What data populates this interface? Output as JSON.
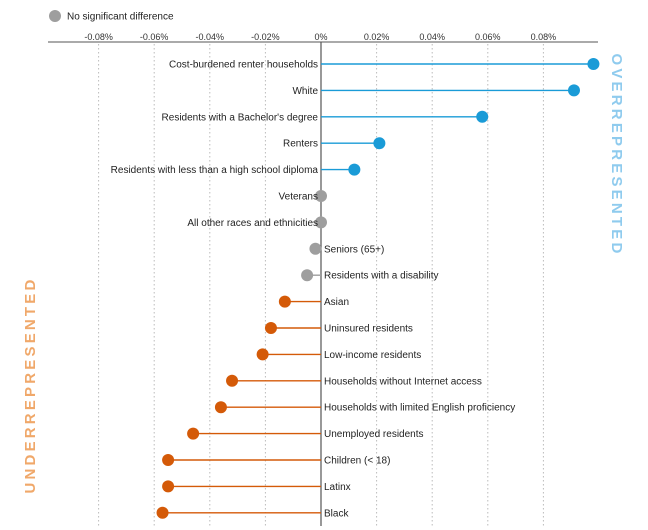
{
  "legend": {
    "label": "No significant difference",
    "color": "#9e9e9e"
  },
  "side_labels": {
    "over": "OVERREPRESENTED",
    "under": "UNDERREPRESENTED"
  },
  "colors": {
    "over": "#1a9bd7",
    "under": "#d45a08",
    "neutral": "#9e9e9e",
    "axis": "#555555",
    "grid": "#bbbbbb"
  },
  "chart_data": {
    "type": "lollipop",
    "title": "",
    "xlabel": "",
    "ylabel": "",
    "x_unit": "%",
    "xlim": [
      -0.1,
      0.098
    ],
    "x_ticks": [
      -0.08,
      -0.06,
      -0.04,
      -0.02,
      0,
      0.02,
      0.04,
      0.06,
      0.08
    ],
    "x_tick_labels": [
      "-0.08%",
      "-0.06%",
      "-0.04%",
      "-0.02%",
      "0%",
      "0.02%",
      "0.04%",
      "0.06%",
      "0.08%"
    ],
    "grid": "vertical-dotted",
    "legend_position": "top-left",
    "points": [
      {
        "label": "Cost-burdened renter households",
        "value": 0.098,
        "group": "over"
      },
      {
        "label": "White",
        "value": 0.091,
        "group": "over"
      },
      {
        "label": "Residents with a Bachelor's degree",
        "value": 0.058,
        "group": "over"
      },
      {
        "label": "Renters",
        "value": 0.021,
        "group": "over"
      },
      {
        "label": "Residents with less than a high school diploma",
        "value": 0.012,
        "group": "over"
      },
      {
        "label": "Veterans",
        "value": 0.0,
        "group": "neutral"
      },
      {
        "label": "All other races and ethnicities",
        "value": 0.0,
        "group": "neutral"
      },
      {
        "label": "Seniors (65+)",
        "value": -0.002,
        "group": "neutral"
      },
      {
        "label": "Residents with a disability",
        "value": -0.005,
        "group": "neutral"
      },
      {
        "label": "Asian",
        "value": -0.013,
        "group": "under"
      },
      {
        "label": "Uninsured residents",
        "value": -0.018,
        "group": "under"
      },
      {
        "label": "Low-income residents",
        "value": -0.021,
        "group": "under"
      },
      {
        "label": "Households without Internet access",
        "value": -0.032,
        "group": "under"
      },
      {
        "label": "Households with limited English proficiency",
        "value": -0.036,
        "group": "under"
      },
      {
        "label": "Unemployed residents",
        "value": -0.046,
        "group": "under"
      },
      {
        "label": "Children (< 18)",
        "value": -0.055,
        "group": "under"
      },
      {
        "label": "Latinx",
        "value": -0.055,
        "group": "under"
      },
      {
        "label": "Black",
        "value": -0.057,
        "group": "under"
      }
    ]
  }
}
